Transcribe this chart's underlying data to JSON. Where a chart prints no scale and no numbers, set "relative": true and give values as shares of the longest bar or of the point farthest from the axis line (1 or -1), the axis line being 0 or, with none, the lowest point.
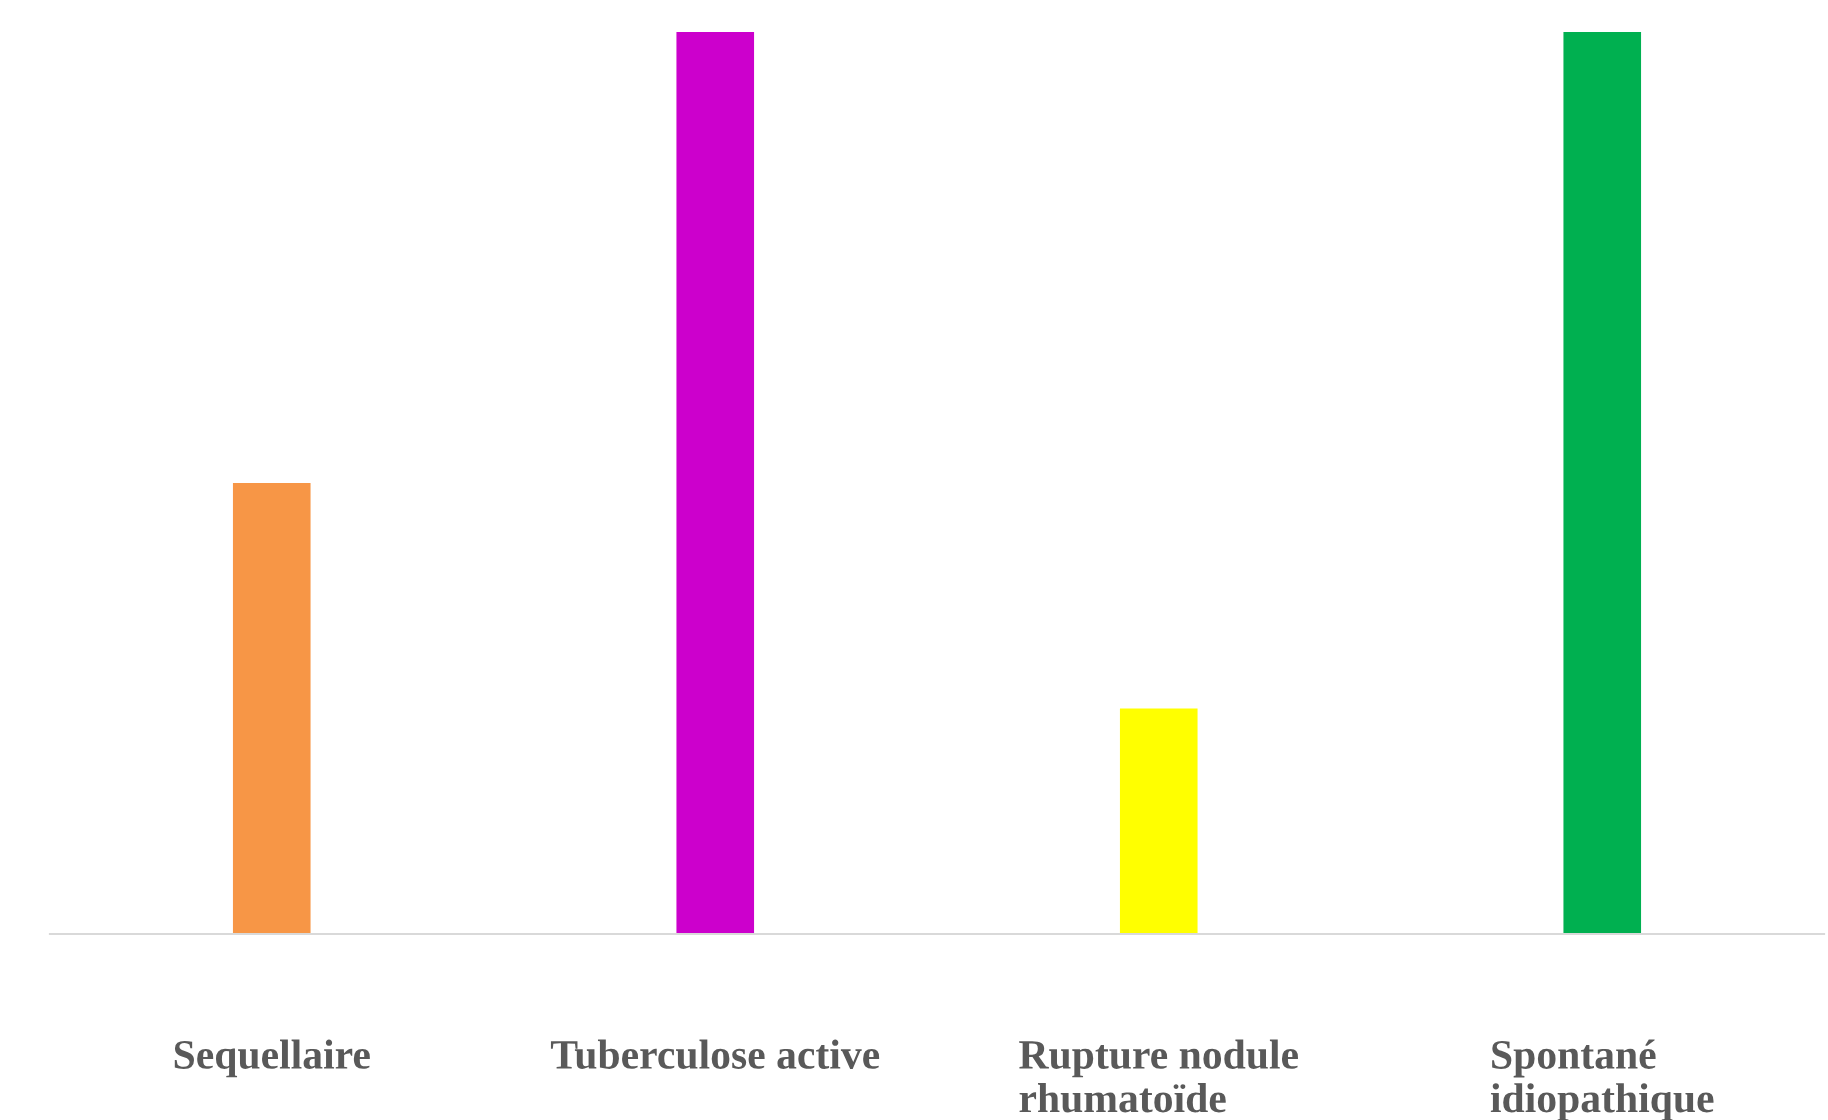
{
  "chart_data": {
    "type": "bar",
    "relative": true,
    "categories": [
      "Sequellaire",
      "Tuberculose active",
      "Rupture nodule\nrhumatoïde",
      "Spontané\nidiopathique"
    ],
    "values": [
      0.5,
      1,
      0.25,
      1
    ],
    "colors": [
      "#f79646",
      "#cc00cc",
      "#ffff00",
      "#00b050"
    ],
    "grid": false,
    "legend": false
  }
}
